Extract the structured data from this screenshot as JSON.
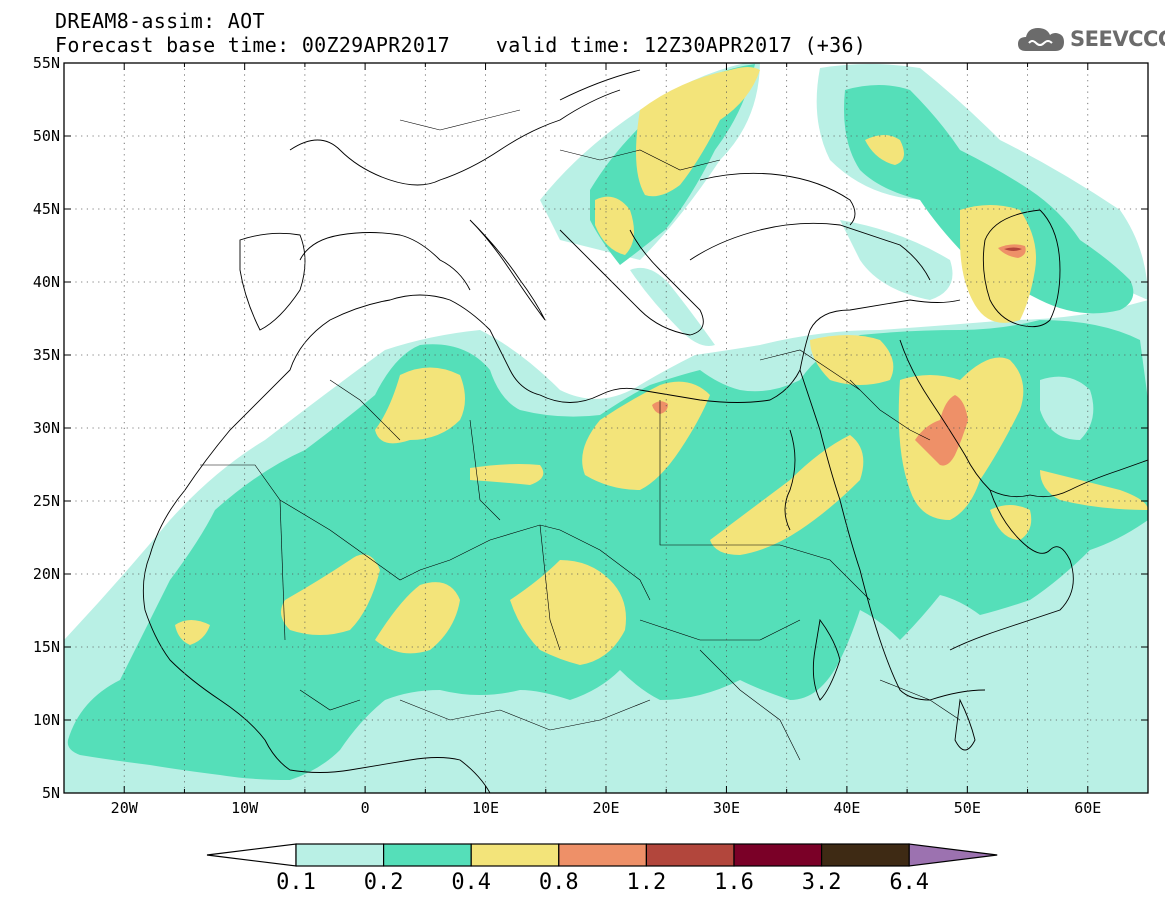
{
  "header": {
    "line1": "DREAM8-assim: AOT",
    "base_time": "Forecast base time: 00Z29APR2017",
    "valid_time": "valid time: 12Z30APR2017 (+36)"
  },
  "logo": {
    "text": "SEEVCCC",
    "icon": "cloud-icon",
    "color": "#6b6b6b"
  },
  "map": {
    "lon_range": [
      -25,
      65
    ],
    "lat_range": [
      5,
      55
    ],
    "x_ticks": [
      "20W",
      "10W",
      "0",
      "10E",
      "20E",
      "30E",
      "40E",
      "50E",
      "60E"
    ],
    "y_ticks": [
      "55N",
      "50N",
      "45N",
      "40N",
      "35N",
      "30N",
      "25N",
      "20N",
      "15N",
      "10N",
      "5N"
    ],
    "grid": "dotted"
  },
  "colorbar": {
    "labels": [
      "0.1",
      "0.2",
      "0.4",
      "0.8",
      "1.2",
      "1.6",
      "3.2",
      "6.4"
    ],
    "colors": [
      "#b9f0e5",
      "#55dfb9",
      "#f3e47a",
      "#ee9068",
      "#b2463c",
      "#7a0027",
      "#3e2a14",
      "#9c72b0"
    ],
    "under_color": "#ffffff"
  }
}
